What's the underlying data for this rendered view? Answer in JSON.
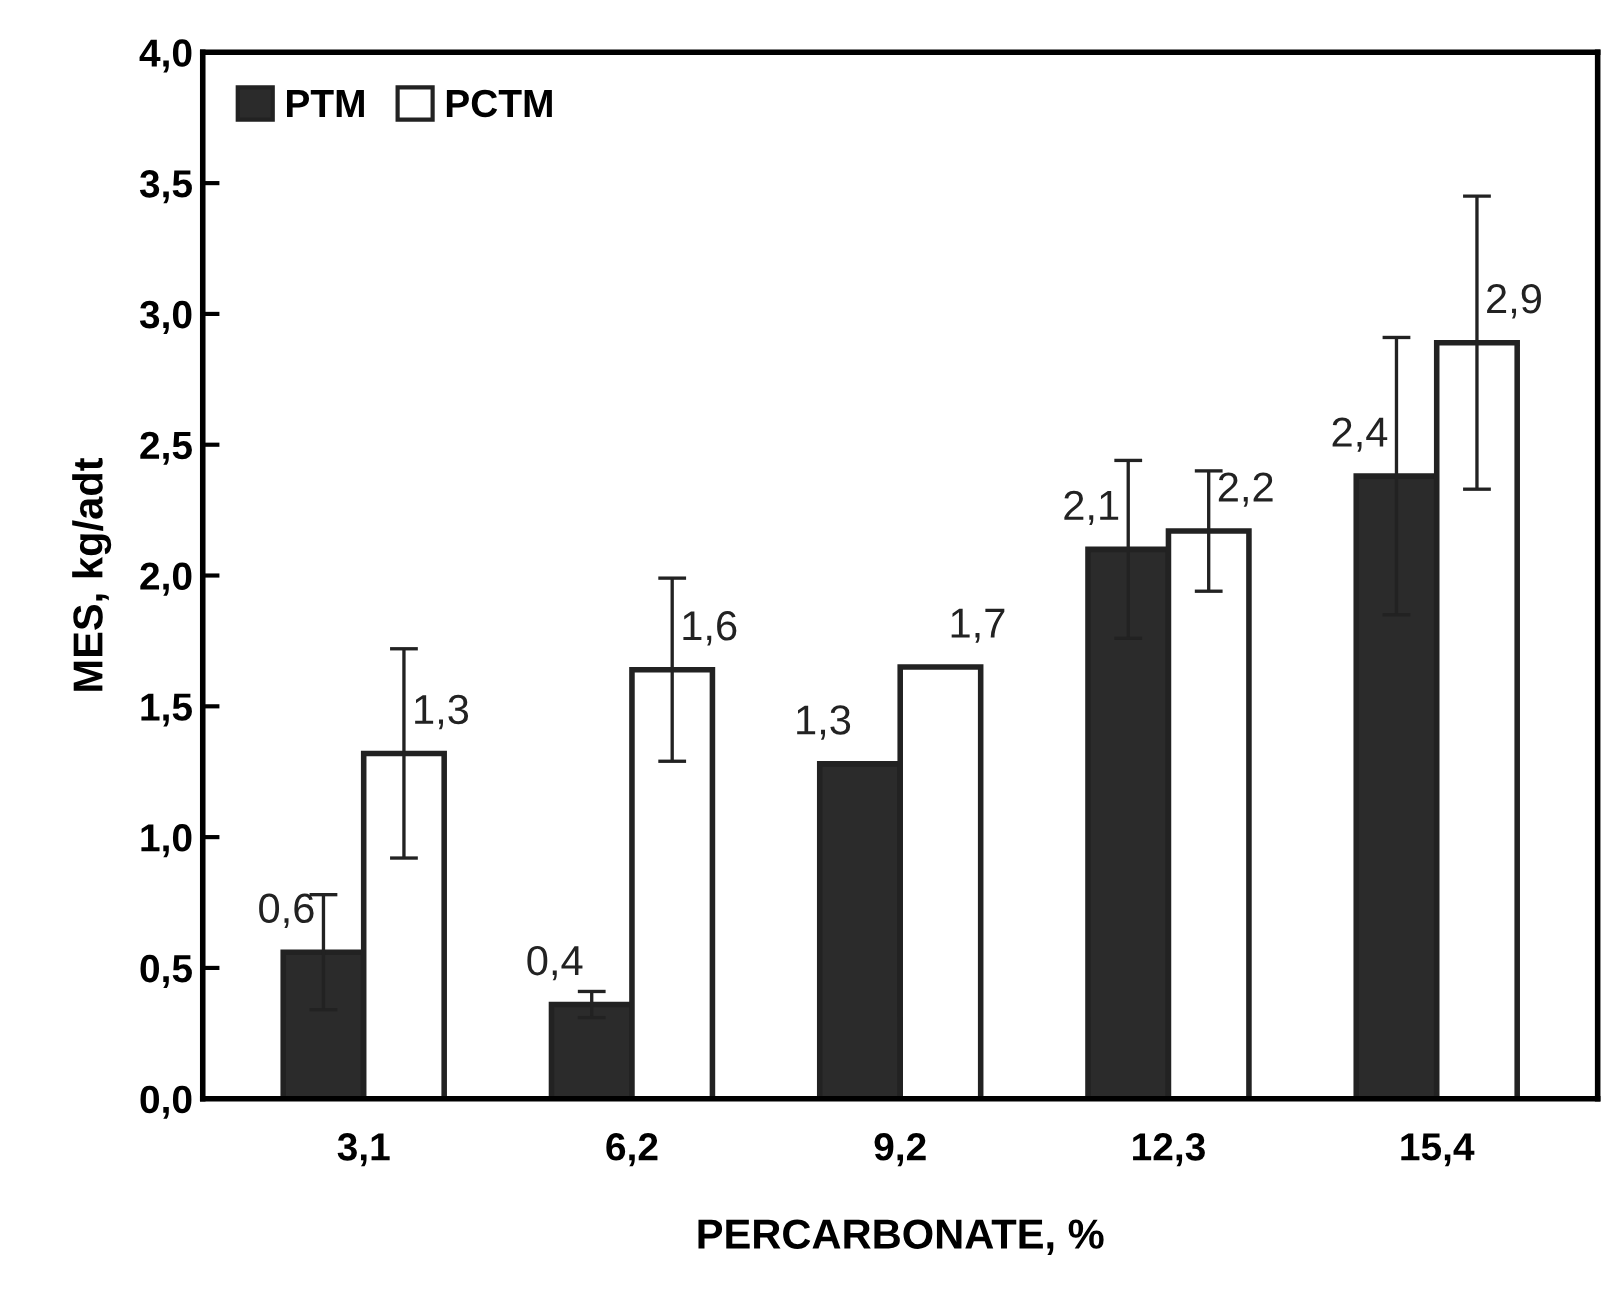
{
  "chart_data": {
    "type": "bar",
    "xlabel": "PERCARBONATE, %",
    "ylabel": "MES, kg/adt",
    "categories": [
      "3,1",
      "6,2",
      "9,2",
      "12,3",
      "15,4"
    ],
    "series": [
      {
        "name": "PTM",
        "color": "#2b2b2b",
        "values": [
          0.56,
          0.36,
          1.28,
          2.1,
          2.38
        ],
        "errors": [
          0.22,
          0.05,
          null,
          0.34,
          0.53
        ],
        "value_labels": [
          "0,6",
          "0,4",
          "1,3",
          "2,1",
          "2,4"
        ]
      },
      {
        "name": "PCTM",
        "color": "#ffffff",
        "values": [
          1.32,
          1.64,
          1.65,
          2.17,
          2.89
        ],
        "errors": [
          0.4,
          0.35,
          null,
          0.23,
          0.56
        ],
        "value_labels": [
          "1,3",
          "1,6",
          "1,7",
          "2,2",
          "2,9"
        ]
      }
    ],
    "ylim": [
      0,
      4
    ],
    "yticks": [
      {
        "value": 0,
        "label": "0,0"
      },
      {
        "value": 0.5,
        "label": "0,5"
      },
      {
        "value": 1,
        "label": "1,0"
      },
      {
        "value": 1.5,
        "label": "1,5"
      },
      {
        "value": 2,
        "label": "2,0"
      },
      {
        "value": 2.5,
        "label": "2,5"
      },
      {
        "value": 3,
        "label": "3,0"
      },
      {
        "value": 3.5,
        "label": "3,5"
      },
      {
        "value": 4,
        "label": "4,0"
      }
    ],
    "legend": "top left",
    "grid": false
  }
}
